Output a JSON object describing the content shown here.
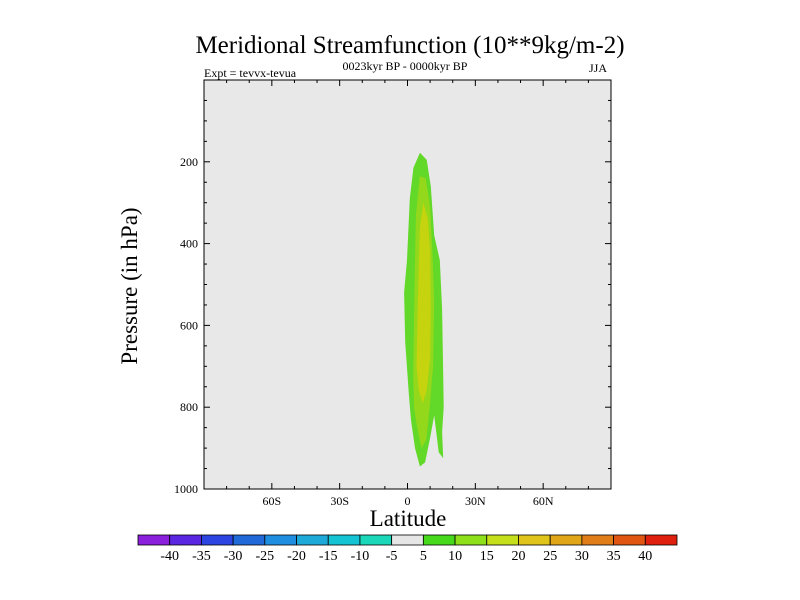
{
  "chart_data": {
    "type": "contour",
    "title": "Meridional Streamfunction (10**9kg/m-2)",
    "left_string": "Expt = tevvx-tevua",
    "center_string": "0023kyr BP - 0000kyr BP",
    "right_string": "JJA",
    "xlabel": "Latitude",
    "ylabel": "Pressure (in hPa)",
    "xlim": [
      -90,
      90
    ],
    "ylim": [
      1000,
      0
    ],
    "x_ticks": [
      {
        "value": -60,
        "label": "60S"
      },
      {
        "value": -30,
        "label": "30S"
      },
      {
        "value": 0,
        "label": "0"
      },
      {
        "value": 30,
        "label": "30N"
      },
      {
        "value": 60,
        "label": "60N"
      }
    ],
    "y_ticks": [
      {
        "value": 200,
        "label": "200"
      },
      {
        "value": 400,
        "label": "400"
      },
      {
        "value": 600,
        "label": "600"
      },
      {
        "value": 800,
        "label": "800"
      },
      {
        "value": 1000,
        "label": "1000"
      }
    ],
    "background_color": "#e8e8e8",
    "contour_levels": [
      "-40",
      "-35",
      "-30",
      "-25",
      "-20",
      "-15",
      "-10",
      "-5",
      "5",
      "10",
      "15",
      "20",
      "25",
      "30",
      "35",
      "40"
    ],
    "colorbar_colors": [
      "#8a1fdc",
      "#5b26e2",
      "#2b44e2",
      "#1f6ad8",
      "#1e8fe0",
      "#1eaad8",
      "#15c4d3",
      "#1ad7b9",
      "#e6e6e6",
      "#46d91b",
      "#8de01a",
      "#c6df1b",
      "#e1c41a",
      "#e1a617",
      "#e07d17",
      "#e05512",
      "#e0200e"
    ],
    "regions": [
      {
        "level": "5 to 10",
        "color": "#62d829",
        "outline": [
          [
            -1,
            640
          ],
          [
            -1.5,
            520
          ],
          [
            -0.2,
            440
          ],
          [
            1,
            290
          ],
          [
            2.6,
            215
          ],
          [
            5.5,
            178
          ],
          [
            8.5,
            195
          ],
          [
            10.3,
            260
          ],
          [
            11.8,
            380
          ],
          [
            14.3,
            440
          ],
          [
            15.3,
            560
          ],
          [
            15.8,
            720
          ],
          [
            16,
            800
          ],
          [
            15.3,
            860
          ],
          [
            15.8,
            925
          ],
          [
            13.8,
            910
          ],
          [
            11.8,
            820
          ],
          [
            9.8,
            880
          ],
          [
            7.8,
            935
          ],
          [
            5.5,
            945
          ],
          [
            3.3,
            900
          ],
          [
            1.5,
            830
          ],
          [
            0.5,
            760
          ]
        ]
      },
      {
        "level": "10 to 15",
        "color": "#93d81a",
        "outline": [
          [
            2.5,
            720
          ],
          [
            3,
            540
          ],
          [
            3.7,
            330
          ],
          [
            5.5,
            235
          ],
          [
            8,
            240
          ],
          [
            10,
            310
          ],
          [
            11,
            420
          ],
          [
            11.8,
            540
          ],
          [
            11.3,
            700
          ],
          [
            9.8,
            800
          ],
          [
            8.3,
            880
          ],
          [
            6.2,
            900
          ],
          [
            4,
            840
          ],
          [
            2.9,
            800
          ]
        ]
      },
      {
        "level": "15 to 20",
        "color": "#c5d40e",
        "outline": [
          [
            4,
            700
          ],
          [
            4.5,
            560
          ],
          [
            5.5,
            360
          ],
          [
            7,
            300
          ],
          [
            9,
            340
          ],
          [
            10,
            420
          ],
          [
            10.3,
            560
          ],
          [
            10,
            680
          ],
          [
            8.5,
            760
          ],
          [
            6.8,
            790
          ],
          [
            5,
            760
          ]
        ]
      }
    ]
  }
}
